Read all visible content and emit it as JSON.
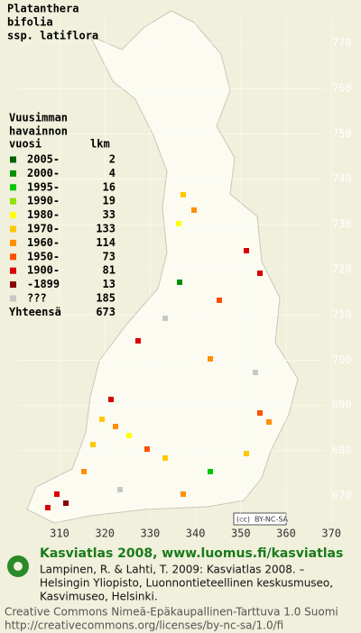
{
  "title": [
    "Platanthera",
    "bifolia",
    "ssp. latiflora"
  ],
  "legend": {
    "heading": [
      "Vuusimman",
      "havainnon"
    ],
    "year_header": "vuosi",
    "count_header": "lkm",
    "items": [
      {
        "label": "2005-",
        "count": 2,
        "color": "#006000"
      },
      {
        "label": "2000-",
        "count": 4,
        "color": "#009000"
      },
      {
        "label": "1995-",
        "count": 16,
        "color": "#00c800"
      },
      {
        "label": "1990-",
        "count": 19,
        "color": "#90e000"
      },
      {
        "label": "1980-",
        "count": 33,
        "color": "#ffff00"
      },
      {
        "label": "1970-",
        "count": 133,
        "color": "#ffc800"
      },
      {
        "label": "1960-",
        "count": 114,
        "color": "#ff9000"
      },
      {
        "label": "1950-",
        "count": 73,
        "color": "#ff5000"
      },
      {
        "label": "1900-",
        "count": 81,
        "color": "#d80000"
      },
      {
        "label": "-1899",
        "count": 13,
        "color": "#880000"
      },
      {
        "label": "???",
        "count": 185,
        "color": "#c8c8c8"
      }
    ],
    "total_label": "Yhteensä",
    "total": 673
  },
  "y_ticks": [
    770,
    760,
    750,
    740,
    730,
    720,
    710,
    700,
    690,
    680,
    670
  ],
  "x_ticks": [
    310,
    320,
    330,
    340,
    350,
    360,
    370
  ],
  "license_badge": "BY-NC-SA",
  "footer": {
    "headline": "Kasviatlas 2008, www.luomus.fi/kasviatlas",
    "citation": [
      "Lampinen, R. & Lahti, T. 2009: Kasviatlas 2008. –",
      "Helsingin Yliopisto, Luonnontieteellinen keskusmuseo,",
      "Kasvimuseo, Helsinki."
    ],
    "license": [
      "Creative Commons Nimeä-Epäkaupallinen-Tarttuva 1.0 Suomi",
      "http://creativecommons.org/licenses/by-nc-sa/1.0/fi"
    ]
  }
}
